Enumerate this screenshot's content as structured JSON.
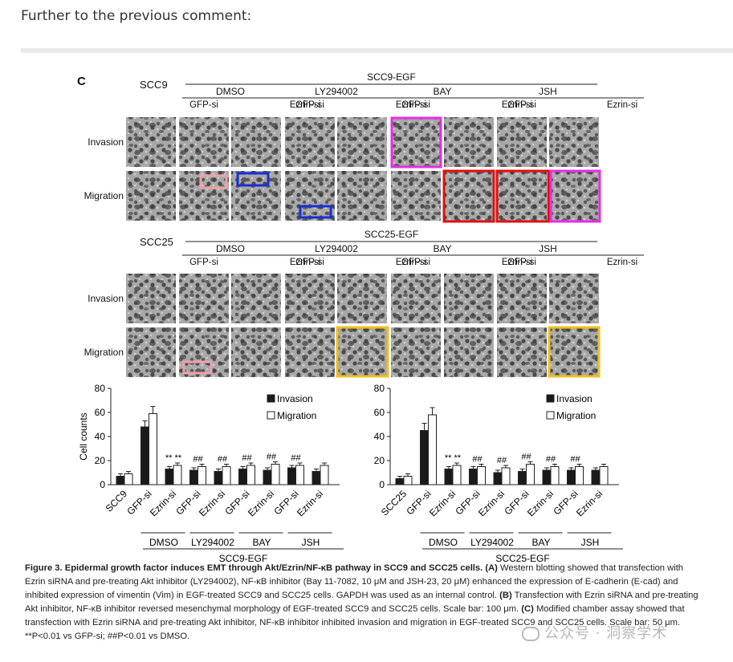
{
  "intro_text": "Further to the previous comment:",
  "panel": {
    "letter": "C",
    "row_labels": {
      "invasion": "Invasion",
      "migration": "Migration"
    },
    "top": {
      "cell": "SCC9",
      "group": "SCC9-EGF",
      "treatments": [
        "DMSO",
        "LY294002",
        "BAY",
        "JSH"
      ],
      "sirnas": [
        "GFP-si",
        "Ezrin-si"
      ]
    },
    "bottom": {
      "cell": "SCC25",
      "group": "SCC25-EGF",
      "treatments": [
        "DMSO",
        "LY294002",
        "BAY",
        "JSH"
      ],
      "sirnas": [
        "GFP-si",
        "Ezrin-si"
      ]
    }
  },
  "chart_data": [
    {
      "type": "bar",
      "ylabel": "Cell counts",
      "ylim": [
        0,
        80
      ],
      "yticks": [
        0,
        20,
        40,
        60,
        80
      ],
      "categories": [
        "SCC9",
        "GFP-si",
        "Ezrin-si",
        "GFP-si",
        "Ezrin-si",
        "GFP-si",
        "Ezrin-si",
        "GFP-si",
        "Ezrin-si"
      ],
      "groups": [
        "DMSO",
        "LY294002",
        "BAY",
        "JSH"
      ],
      "group_label": "SCC9-EGF",
      "series": [
        {
          "name": "Invasion",
          "color": "#1a1a1a",
          "values": [
            7,
            48,
            13,
            12,
            11,
            13,
            12,
            14,
            11
          ],
          "errors": [
            2,
            5,
            2,
            2,
            2,
            2,
            2,
            2,
            2
          ]
        },
        {
          "name": "Migration",
          "color": "#ffffff",
          "values": [
            9,
            59,
            16,
            15,
            15,
            16,
            17,
            16,
            16
          ],
          "errors": [
            2,
            6,
            2,
            2,
            2,
            2,
            2,
            2,
            2
          ]
        }
      ],
      "annotations": [
        "**",
        "**",
        "##",
        "##",
        "##",
        "##",
        "##",
        "##"
      ]
    },
    {
      "type": "bar",
      "ylabel": "",
      "ylim": [
        0,
        80
      ],
      "yticks": [
        0,
        20,
        40,
        60,
        80
      ],
      "categories": [
        "SCC25",
        "GFP-si",
        "Ezrin-si",
        "GFP-si",
        "Ezrin-si",
        "GFP-si",
        "Ezrin-si",
        "GFP-si",
        "Ezrin-si"
      ],
      "groups": [
        "DMSO",
        "LY294002",
        "BAY",
        "JSH"
      ],
      "group_label": "SCC25-EGF",
      "series": [
        {
          "name": "Invasion",
          "color": "#1a1a1a",
          "values": [
            5,
            45,
            13,
            13,
            10,
            11,
            12,
            12,
            12
          ],
          "errors": [
            2,
            6,
            2,
            2,
            2,
            2,
            2,
            2,
            2
          ]
        },
        {
          "name": "Migration",
          "color": "#ffffff",
          "values": [
            7,
            58,
            16,
            15,
            14,
            17,
            15,
            15,
            15
          ],
          "errors": [
            2,
            6,
            2,
            2,
            2,
            2,
            2,
            2,
            2
          ]
        }
      ],
      "annotations": [
        "**",
        "**",
        "##",
        "##",
        "##",
        "##",
        "##",
        "##"
      ]
    }
  ],
  "caption": {
    "title": "Figure 3. Epidermal growth factor induces EMT through Akt/Ezrin/NF-κB pathway in SCC9 and SCC25 cells.",
    "a_label": "(A)",
    "a_text": "Western blotting showed that transfection with Ezrin siRNA and pre-treating Akt inhibitor (LY294002), NF-κB inhibitor (Bay 11-7082, 10 μM and JSH-23, 20 μM) enhanced the expression of E-cadherin (E-cad) and inhibited expression of vimentin (Vim) in EGF-treated SCC9 and SCC25 cells. GAPDH was used as an internal control.",
    "b_label": "(B)",
    "b_text": "Transfection with Ezrin siRNA and pre-treating Akt inhibitor, NF-κB inhibitor reversed mesenchymal morphology of EGF-treated SCC9 and SCC25 cells. Scale bar: 100 μm.",
    "c_label": "(C)",
    "c_text": "Modified chamber assay showed that transfection with Ezrin siRNA and pre-treating Akt inhibitor, NF-κB inhibitor inhibited invasion and migration in EGF-treated SCC9 and SCC25 cells. Scale bar: 50 μm. **P<0.01 vs GFP-si; ##P<0.01 vs DMSO."
  },
  "watermark": "公众号 · 洞察学术",
  "highlight_colors": {
    "magenta": "#e62ee6",
    "red": "#e01010",
    "blue": "#1a2fd6",
    "pink": "#f0a0a8",
    "gold": "#f0c020"
  }
}
